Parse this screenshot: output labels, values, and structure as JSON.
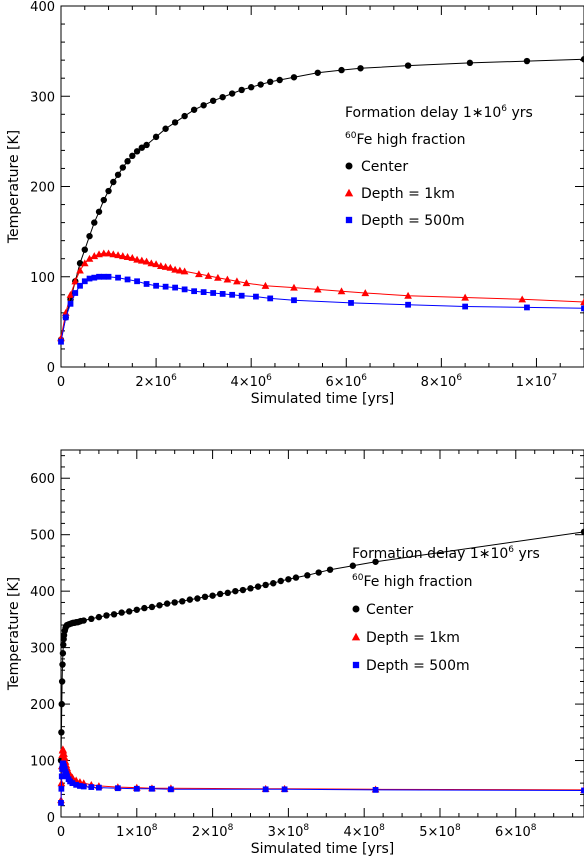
{
  "chart_data": [
    {
      "type": "scatter",
      "xlabel": "Simulated time [yrs]",
      "ylabel": "Temperature [K]",
      "xlim": [
        0,
        11000000
      ],
      "ylim": [
        0,
        400
      ],
      "x_ticks": [
        0,
        2000000,
        4000000,
        6000000,
        8000000,
        10000000
      ],
      "x_tick_labels": [
        {
          "m": "0",
          "e": ""
        },
        {
          "m": "2×10",
          "e": "6"
        },
        {
          "m": "4×10",
          "e": "6"
        },
        {
          "m": "6×10",
          "e": "6"
        },
        {
          "m": "8×10",
          "e": "6"
        },
        {
          "m": "1×10",
          "e": "7"
        }
      ],
      "y_ticks": [
        0,
        100,
        200,
        300,
        400
      ],
      "y_tick_labels": [
        "0",
        "100",
        "200",
        "300",
        "400"
      ],
      "legend": {
        "line1_prefix": "Formation delay 1∗10",
        "line1_exp": "6",
        "line1_suffix": " yrs",
        "line2_sup": "60",
        "line2_text": "Fe high fraction",
        "placement": "right-middle"
      },
      "series": [
        {
          "name": "Center",
          "marker": "circle",
          "color": "#000000",
          "x": [
            0,
            100000,
            200000,
            300000,
            400000,
            500000,
            600000,
            700000,
            800000,
            900000,
            1000000,
            1100000,
            1200000,
            1300000,
            1400000,
            1500000,
            1600000,
            1700000,
            1800000,
            2000000,
            2200000,
            2400000,
            2600000,
            2800000,
            3000000,
            3200000,
            3400000,
            3600000,
            3800000,
            4000000,
            4200000,
            4400000,
            4600000,
            4900000,
            5400000,
            5900000,
            6300000,
            7300000,
            8600000,
            9800000,
            11000000
          ],
          "y": [
            30,
            55,
            75,
            95,
            115,
            130,
            145,
            160,
            172,
            185,
            195,
            205,
            213,
            221,
            228,
            234,
            239,
            243,
            246,
            255,
            264,
            271,
            278,
            285,
            290,
            295,
            299,
            303,
            307,
            310,
            313,
            316,
            318,
            321,
            326,
            329,
            331,
            334,
            337,
            339,
            341
          ]
        },
        {
          "name": "Depth = 1km",
          "marker": "triangle",
          "color": "#ff0000",
          "x": [
            0,
            100000,
            200000,
            300000,
            400000,
            500000,
            600000,
            700000,
            800000,
            900000,
            1000000,
            1100000,
            1200000,
            1300000,
            1400000,
            1500000,
            1600000,
            1700000,
            1800000,
            1900000,
            2000000,
            2100000,
            2200000,
            2300000,
            2400000,
            2500000,
            2600000,
            2900000,
            3100000,
            3300000,
            3500000,
            3700000,
            3900000,
            4300000,
            4900000,
            5400000,
            5900000,
            6400000,
            7300000,
            8500000,
            9700000,
            11000000
          ],
          "y": [
            32,
            60,
            80,
            95,
            107,
            115,
            120,
            123,
            125,
            126,
            126,
            125,
            124,
            123,
            122,
            121,
            119,
            118,
            117,
            115,
            114,
            112,
            111,
            110,
            108,
            107,
            106,
            103,
            101,
            99,
            97,
            95,
            93,
            90,
            88,
            86,
            84,
            82,
            79,
            77,
            75,
            72
          ]
        },
        {
          "name": "Depth = 500m",
          "marker": "square",
          "color": "#0000ff",
          "x": [
            0,
            100000,
            200000,
            300000,
            400000,
            500000,
            600000,
            700000,
            800000,
            900000,
            1000000,
            1200000,
            1400000,
            1600000,
            1800000,
            2000000,
            2200000,
            2400000,
            2600000,
            2800000,
            3000000,
            3200000,
            3400000,
            3600000,
            3800000,
            4100000,
            4400000,
            4900000,
            6100000,
            7300000,
            8500000,
            9800000,
            11000000
          ],
          "y": [
            28,
            55,
            70,
            82,
            90,
            95,
            98,
            99,
            100,
            100,
            100,
            99,
            97,
            95,
            92,
            90,
            89,
            88,
            86,
            84,
            83,
            82,
            81,
            80,
            79,
            78,
            76,
            74,
            71,
            69,
            67,
            66,
            65
          ]
        }
      ]
    },
    {
      "type": "scatter",
      "xlabel": "Simulated time [yrs]",
      "ylabel": "Temperature [K]",
      "xlim": [
        0,
        690000000
      ],
      "ylim": [
        0,
        650
      ],
      "x_ticks": [
        0,
        100000000,
        200000000,
        300000000,
        400000000,
        500000000,
        600000000
      ],
      "x_tick_labels": [
        {
          "m": "0",
          "e": ""
        },
        {
          "m": "1×10",
          "e": "8"
        },
        {
          "m": "2×10",
          "e": "8"
        },
        {
          "m": "3×10",
          "e": "8"
        },
        {
          "m": "4×10",
          "e": "8"
        },
        {
          "m": "5×10",
          "e": "8"
        },
        {
          "m": "6×10",
          "e": "8"
        }
      ],
      "y_ticks": [
        0,
        100,
        200,
        300,
        400,
        500,
        600
      ],
      "y_tick_labels": [
        "0",
        "100",
        "200",
        "300",
        "400",
        "500",
        "600"
      ],
      "legend": {
        "line1_prefix": "Formation delay 1∗10",
        "line1_exp": "6",
        "line1_suffix": " yrs",
        "line2_sup": "60",
        "line2_text": "Fe high fraction",
        "placement": "right-middle"
      },
      "series": [
        {
          "name": "Center",
          "marker": "circle",
          "color": "#000000",
          "x": [
            0,
            500000,
            1000000,
            1500000,
            2000000,
            2500000,
            3000000,
            3500000,
            4000000,
            5000000,
            6000000,
            7000000,
            8000000,
            10000000,
            12000000,
            14000000,
            16000000,
            18000000,
            20000000,
            22000000,
            24000000,
            26000000,
            30000000,
            40000000,
            50000000,
            60000000,
            70000000,
            80000000,
            90000000,
            100000000,
            110000000,
            120000000,
            130000000,
            140000000,
            150000000,
            160000000,
            170000000,
            180000000,
            190000000,
            200000000,
            210000000,
            220000000,
            230000000,
            240000000,
            250000000,
            260000000,
            270000000,
            280000000,
            290000000,
            300000000,
            310000000,
            325000000,
            340000000,
            355000000,
            385000000,
            415000000,
            690000000
          ],
          "y": [
            100,
            150,
            200,
            240,
            270,
            290,
            305,
            315,
            322,
            330,
            335,
            338,
            340,
            341,
            342,
            343,
            344,
            344,
            345,
            345,
            346,
            347,
            348,
            351,
            354,
            357,
            359,
            362,
            364,
            367,
            370,
            372,
            375,
            378,
            380,
            382,
            385,
            387,
            390,
            392,
            395,
            397,
            400,
            402,
            405,
            408,
            411,
            414,
            418,
            421,
            424,
            428,
            433,
            438,
            445,
            452,
            505
          ]
        },
        {
          "name": "Depth = 1km",
          "marker": "triangle",
          "color": "#ff0000",
          "x": [
            0,
            500000,
            1000000,
            1500000,
            2000000,
            2500000,
            3000000,
            4000000,
            5000000,
            6000000,
            7000000,
            8000000,
            10000000,
            12000000,
            15000000,
            20000000,
            25000000,
            30000000,
            40000000,
            50000000,
            75000000,
            100000000,
            120000000,
            145000000,
            270000000,
            295000000,
            415000000,
            690000000
          ],
          "y": [
            30,
            60,
            90,
            110,
            118,
            120,
            118,
            112,
            105,
            98,
            92,
            87,
            80,
            75,
            70,
            65,
            62,
            60,
            57,
            55,
            53,
            52,
            51,
            51,
            50,
            50,
            49,
            48
          ]
        },
        {
          "name": "Depth = 500m",
          "marker": "square",
          "color": "#0000ff",
          "x": [
            0,
            500000,
            1000000,
            1500000,
            2000000,
            2500000,
            3000000,
            4000000,
            5000000,
            6000000,
            7000000,
            8000000,
            10000000,
            12000000,
            15000000,
            20000000,
            25000000,
            30000000,
            40000000,
            50000000,
            75000000,
            100000000,
            120000000,
            145000000,
            270000000,
            295000000,
            415000000,
            690000000
          ],
          "y": [
            25,
            50,
            72,
            85,
            92,
            95,
            94,
            90,
            85,
            80,
            76,
            72,
            67,
            63,
            60,
            57,
            55,
            54,
            53,
            52,
            51,
            50,
            50,
            49,
            49,
            49,
            48,
            47
          ]
        }
      ]
    }
  ]
}
